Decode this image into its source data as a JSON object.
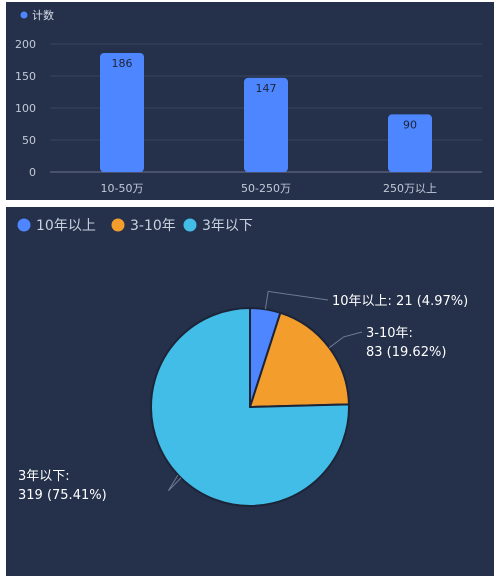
{
  "chart_data": [
    {
      "type": "bar",
      "legend": "计数",
      "legend_position": "top-left",
      "categories": [
        "10-50万",
        "50-250万",
        "250万以上"
      ],
      "values": [
        186,
        147,
        90
      ],
      "ylim": [
        0,
        200
      ],
      "yticks": [
        "0",
        "50",
        "100",
        "150",
        "200"
      ],
      "grid": true,
      "color": "#4d86ff",
      "data_labels": [
        "186",
        "147",
        "90"
      ]
    },
    {
      "type": "pie",
      "legend_position": "top-left",
      "slices": [
        {
          "name": "10年以上",
          "value": 21,
          "percent": 4.97,
          "color": "#4d86ff",
          "label_line1": "10年以上: 21 (4.97%)",
          "label_line2": ""
        },
        {
          "name": "3-10年",
          "value": 83,
          "percent": 19.62,
          "color": "#f29d2c",
          "label_line1": "3-10年:",
          "label_line2": "83 (19.62%)"
        },
        {
          "name": "3年以下",
          "value": 319,
          "percent": 75.41,
          "color": "#42bde7",
          "label_line1": "3年以下:",
          "label_line2": "319 (75.41%)"
        }
      ]
    }
  ]
}
